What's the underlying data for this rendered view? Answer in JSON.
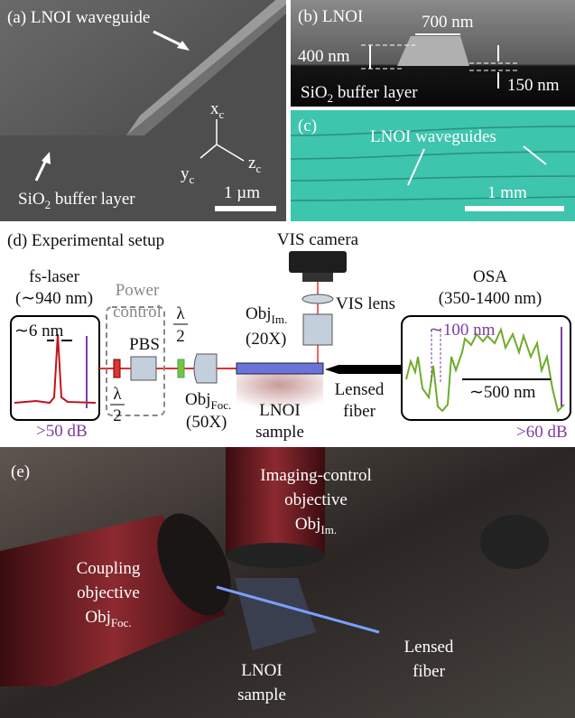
{
  "panel_a": {
    "label": "(a) LNOI waveguide",
    "axis_x": {
      "base": "x",
      "sub": "c"
    },
    "axis_y": {
      "base": "y",
      "sub": "c"
    },
    "axis_z": {
      "base": "z",
      "sub": "c"
    },
    "substrate": {
      "base": "SiO",
      "sub": "2",
      "rest": " buffer layer"
    },
    "scale_bar": "1 µm"
  },
  "panel_b": {
    "label": "(b) LNOI",
    "width": "700 nm",
    "height": "400 nm",
    "etch_depth": "150 nm",
    "substrate": {
      "base": "SiO",
      "sub": "2",
      "rest": " buffer layer"
    }
  },
  "panel_c": {
    "label": "(c)",
    "waveguides": "LNOI waveguides",
    "scale_bar": "1 mm"
  },
  "panel_d": {
    "label": "(d) Experimental setup",
    "laser": {
      "name": "fs-laser",
      "wavelength": "(∼940 nm)",
      "linewidth": "∼6 nm",
      "dynamic_range": ">50 dB"
    },
    "power_control": {
      "line1": "Power",
      "line2": "control"
    },
    "pbs": "PBS",
    "half_wave_plate": {
      "numerator": "λ",
      "denominator": "2"
    },
    "focus_objective": {
      "base": "Obj",
      "sub": "Foc.",
      "magnification": "(50X)"
    },
    "imaging_objective": {
      "base": "Obj",
      "sub": "Im.",
      "magnification": "(20X)"
    },
    "vis_camera": "VIS camera",
    "vis_lens": "VIS lens",
    "sample": {
      "line1": "LNOI",
      "line2": "sample"
    },
    "fiber": {
      "line1": "Lensed",
      "line2": "fiber"
    },
    "osa": {
      "name": "OSA",
      "range": "(350-1400 nm)",
      "gap": "∼100 nm",
      "span": "∼500 nm",
      "dynamic_range": ">60 dB"
    }
  },
  "panel_e": {
    "label": "(e)",
    "imaging": {
      "line1": "Imaging-control",
      "line2": "objective",
      "base": "Obj",
      "sub": "Im."
    },
    "coupling": {
      "line1": "Coupling",
      "line2": "objective",
      "base": "Obj",
      "sub": "Foc."
    },
    "sample": {
      "line1": "LNOI",
      "line2": "sample"
    },
    "fiber": {
      "line1": "Lensed",
      "line2": "fiber"
    }
  }
}
